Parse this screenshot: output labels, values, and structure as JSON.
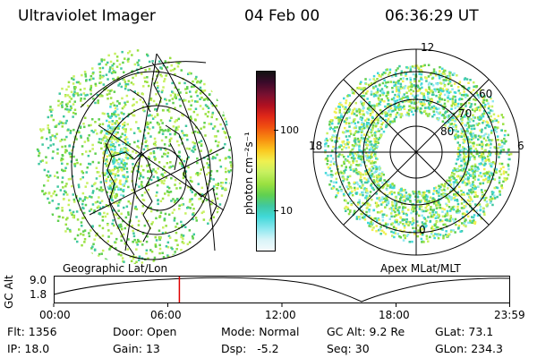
{
  "header": {
    "instrument": "Ultraviolet Imager",
    "date": "04 Feb 00",
    "time": "06:36:29 UT"
  },
  "geo_panel": {
    "caption": "Geographic Lat/Lon"
  },
  "apex_panel": {
    "caption": "Apex  MLat/MLT",
    "mlt_labels": {
      "top": "12",
      "left": "18",
      "right": "6",
      "bottom": "0"
    },
    "lat_labels": [
      "80",
      "70",
      "60"
    ]
  },
  "colorbar": {
    "unit_label": "photon cm⁻²s⁻¹",
    "tick_labels": [
      "100",
      "10"
    ],
    "colors": [
      "#121212",
      "#3a0a2a",
      "#7a1030",
      "#b01020",
      "#e02818",
      "#f05010",
      "#f89010",
      "#fbc820",
      "#f0f050",
      "#c8f060",
      "#98e040",
      "#60d050",
      "#40c8a0",
      "#40d8d8",
      "#90e8f0",
      "#d8f4f8",
      "#f4fafc"
    ]
  },
  "timeline": {
    "axis_title": "GC Alt",
    "y_ticks": [
      "9.0",
      "1.8"
    ],
    "x_ticks": [
      "00:00",
      "06:00",
      "12:00",
      "18:00",
      "23:59"
    ],
    "current_time_hours": 6.608,
    "marker_color": "#e00000"
  },
  "info": {
    "row1": [
      {
        "label": "Flt:",
        "value": "1356"
      },
      {
        "label": "Door:",
        "value": "Open"
      },
      {
        "label": "Mode:",
        "value": "Normal"
      },
      {
        "label": "GC Alt:",
        "value": "9.2 Re"
      },
      {
        "label": "GLat:",
        "value": "73.1"
      }
    ],
    "row2": [
      {
        "label": "IP:",
        "value": "18.0"
      },
      {
        "label": "Gain:",
        "value": "13"
      },
      {
        "label": "Dsp:",
        "value": "  -5.2"
      },
      {
        "label": "Seq:",
        "value": "30"
      },
      {
        "label": "GLon:",
        "value": "234.3"
      }
    ]
  }
}
